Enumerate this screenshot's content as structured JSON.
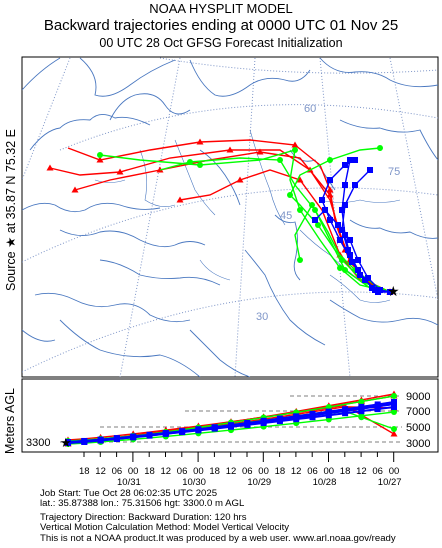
{
  "title": {
    "line1": "NOAA HYSPLIT MODEL",
    "line2": "Backward trajectories ending at 0000 UTC 01 Nov 25",
    "line3": "00 UTC 28 Oct    GFSG  Forecast Initialization"
  },
  "source_label": "Source ★ at   35.87 N   75.32 E",
  "map": {
    "latitude_labels": [
      "75",
      "60",
      "45",
      "30"
    ],
    "source_symbol": "star",
    "colors": {
      "series1": "#ff0000",
      "series2": "#0000ff",
      "series3": "#00ff00",
      "map_lines": "#4a78c0",
      "grid": "#7f96c8"
    }
  },
  "vertical_panel": {
    "ylabel": "Meters AGL",
    "start_height_label": "3300",
    "right_axis": [
      "9000",
      "7000",
      "5000",
      "3000"
    ],
    "hour_ticks": [
      "18",
      "12",
      "06",
      "00",
      "18",
      "12",
      "06",
      "00",
      "18",
      "12",
      "06",
      "00",
      "18",
      "12",
      "06",
      "00",
      "18",
      "12",
      "06",
      "00"
    ],
    "date_ticks": [
      "10/31",
      "10/30",
      "10/29",
      "10/28",
      "10/27"
    ]
  },
  "footer": {
    "line1": "Job Start: Tue Oct 28 06:02:35 UTC 2025",
    "line2": "lat.: 35.87388   lon.: 75.31506   hgt: 3300.0 m AGL",
    "line3": "Trajectory Direction: Backward        Duration: 120 hrs",
    "line4": "Vertical Motion Calculation Method: Model Vertical Velocity",
    "line5": "This is not a NOAA product.It was produced by a web user. www.arl.noaa.gov/ready"
  }
}
